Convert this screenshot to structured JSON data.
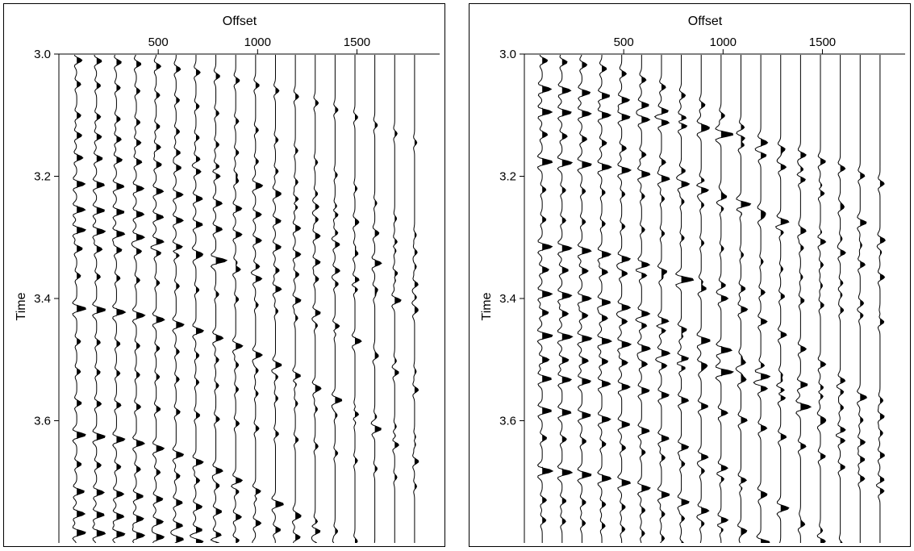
{
  "chart_data": [
    {
      "type": "seismic-wiggle",
      "title": "",
      "xlabel": "Offset",
      "ylabel": "Time",
      "x_ticks": [
        500,
        1000,
        1500
      ],
      "y_ticks": [
        3.0,
        3.2,
        3.4,
        3.6
      ],
      "y_tick_labels": [
        "3.0",
        "3.2",
        "3.4",
        "3.6"
      ],
      "xlim": [
        0,
        1900
      ],
      "ylim": [
        3.0,
        3.8
      ],
      "x_axis_position": "top",
      "trace_offsets": [
        90,
        190,
        290,
        390,
        490,
        590,
        690,
        790,
        890,
        990,
        1090,
        1190,
        1290,
        1390,
        1490,
        1590,
        1690,
        1790
      ],
      "fill": "positive-lobes",
      "fill_color": "#000000",
      "seed": 11
    },
    {
      "type": "seismic-wiggle",
      "title": "",
      "xlabel": "Offset",
      "ylabel": "Time",
      "x_ticks": [
        500,
        1000,
        1500
      ],
      "y_ticks": [
        3.0,
        3.2,
        3.4,
        3.6
      ],
      "y_tick_labels": [
        "3.0",
        "3.2",
        "3.4",
        "3.6"
      ],
      "xlim": [
        0,
        1900
      ],
      "ylim": [
        3.0,
        3.8
      ],
      "x_axis_position": "top",
      "trace_offsets": [
        90,
        190,
        290,
        390,
        490,
        590,
        690,
        790,
        890,
        990,
        1090,
        1190,
        1290,
        1390,
        1490,
        1590,
        1690,
        1790
      ],
      "fill": "positive-lobes",
      "fill_color": "#000000",
      "seed": 29
    }
  ]
}
